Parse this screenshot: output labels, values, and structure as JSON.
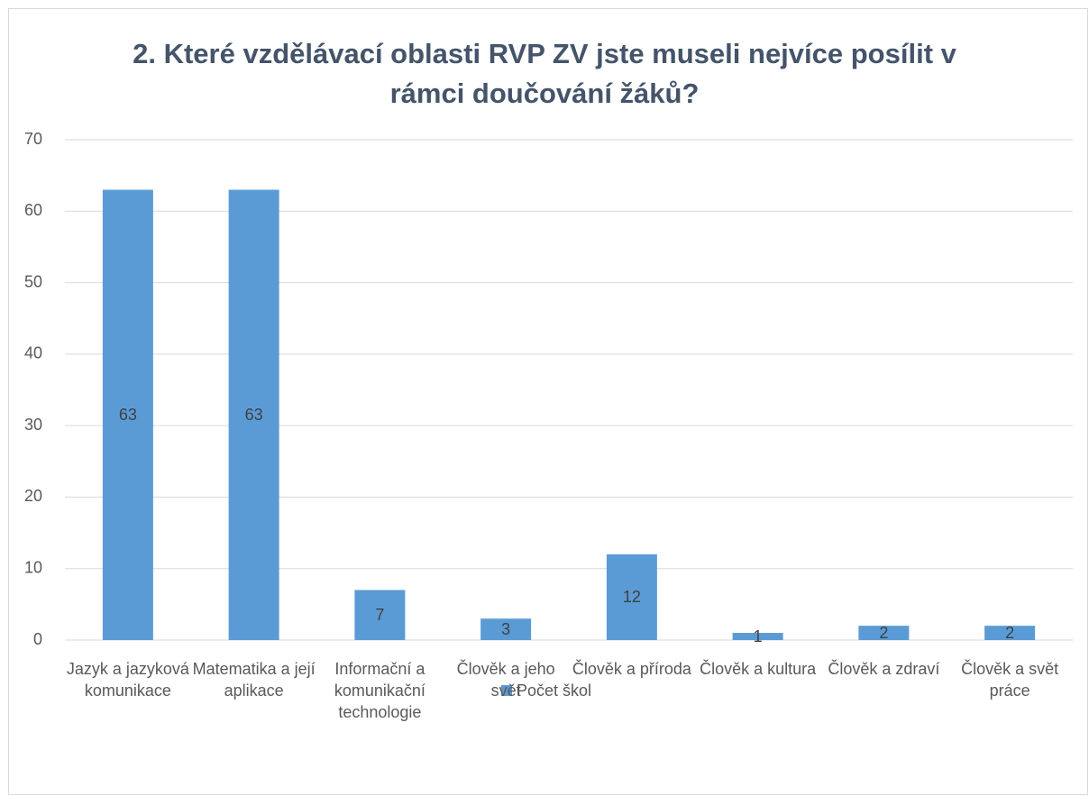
{
  "chart_data": {
    "type": "bar",
    "title": "2. Které vzdělávací oblasti RVP ZV jste museli nejvíce posílit v rámci doučování žáků?",
    "categories": [
      "Jazyk a jazyková komunikace",
      "Matematika a její aplikace",
      "Informační a komunikační technologie",
      "Člověk a jeho svět",
      "Člověk a příroda",
      "Člověk a kultura",
      "Člověk a zdraví",
      "Člověk a svět práce"
    ],
    "series": [
      {
        "name": "Počet škol",
        "color": "#5b9bd5",
        "values": [
          63,
          63,
          7,
          3,
          12,
          1,
          2,
          2
        ]
      }
    ],
    "ylim": [
      0,
      70
    ],
    "yticks": [
      0,
      10,
      20,
      30,
      40,
      50,
      60,
      70
    ],
    "grid": true,
    "legend": "bottom"
  }
}
